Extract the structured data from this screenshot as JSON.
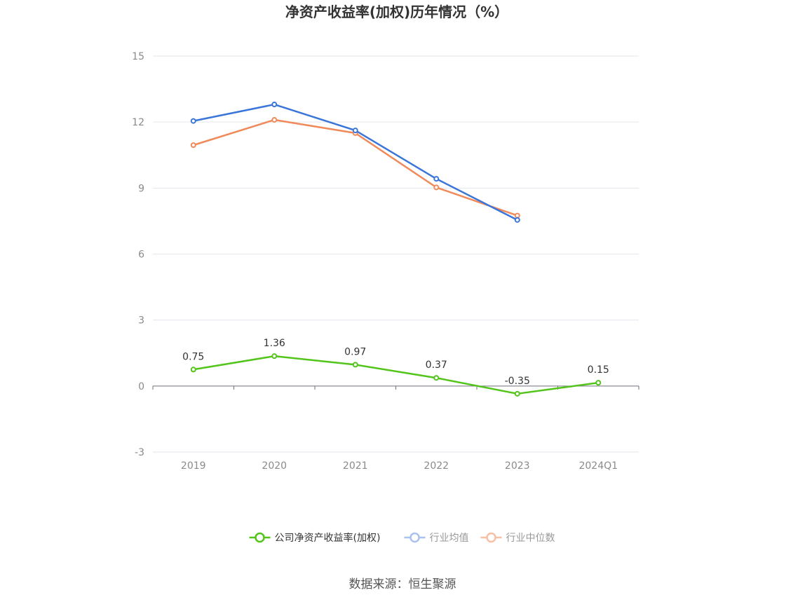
{
  "chart_data": {
    "type": "line",
    "title": "净资产收益率(加权)历年情况（%）",
    "categories": [
      "2019",
      "2020",
      "2021",
      "2022",
      "2023",
      "2024Q1"
    ],
    "ylim": [
      -3,
      15
    ],
    "yticks": [
      "15",
      "12",
      "9",
      "6",
      "3",
      "0",
      "-3"
    ],
    "ytick_values": [
      15,
      12,
      9,
      6,
      3,
      0,
      -3
    ],
    "grid": true,
    "legend_position": "bottom",
    "series": [
      {
        "name": "公司净资产收益率(加权)",
        "color": "#52c41a",
        "values": [
          0.75,
          1.36,
          0.97,
          0.37,
          -0.35,
          0.15
        ],
        "labels": [
          "0.75",
          "1.36",
          "0.97",
          "0.37",
          "-0.35",
          "0.15"
        ]
      },
      {
        "name": "行业均值",
        "color": "#3a76d9",
        "values": [
          12.05,
          12.8,
          11.62,
          9.42,
          7.55,
          null
        ]
      },
      {
        "name": "行业中位数",
        "color": "#f08a5a",
        "values": [
          10.95,
          12.1,
          11.5,
          9.03,
          7.75,
          null
        ]
      }
    ],
    "legend_text_colors": [
      "#333333",
      "#999999",
      "#999999"
    ],
    "legend_icon_colors": [
      "#52c41a",
      "#a9c2ee",
      "#f7bfa4"
    ]
  },
  "source": "数据来源：恒生聚源"
}
